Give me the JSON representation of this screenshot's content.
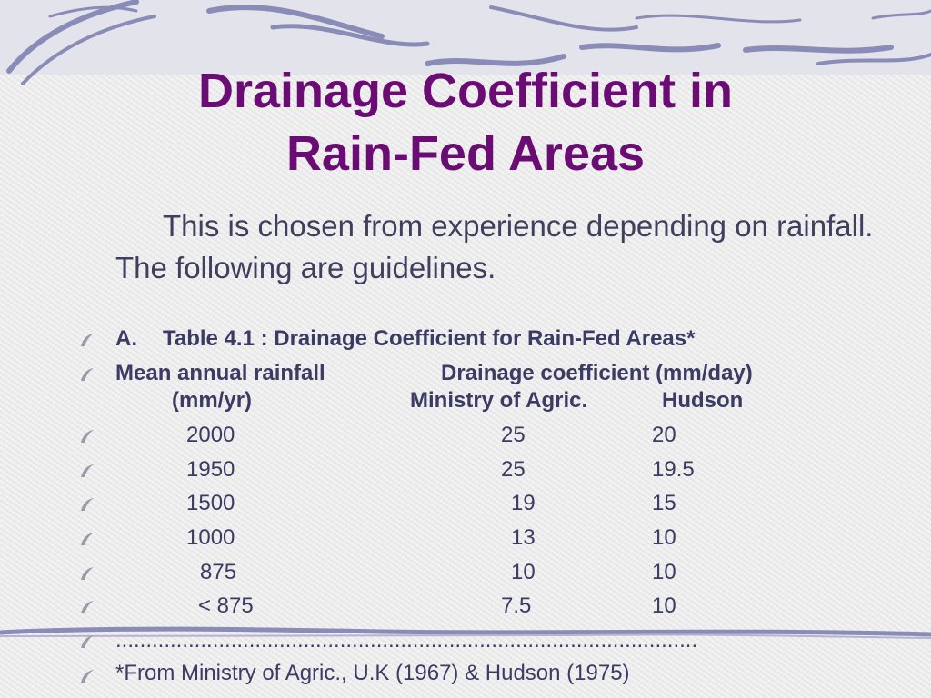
{
  "slide": {
    "title_line1": "Drainage Coefficient in",
    "title_line2": "Rain-Fed Areas",
    "intro": "This is chosen from experience depending on rainfall.  The following are guidelines.",
    "table_caption_marker": "A.",
    "table_caption": "Table 4.1 :  Drainage Coefficient for Rain-Fed Areas*",
    "header": {
      "col1": "Mean annual rainfall",
      "col2": "Drainage coefficient (mm/day)",
      "col1_unit": "(mm/yr)",
      "sub_ministry": "Ministry of Agric.",
      "sub_hudson": "Hudson"
    },
    "rows": [
      {
        "rainfall": "2000",
        "ministry": "25",
        "hudson": "20"
      },
      {
        "rainfall": "1950",
        "ministry": "25",
        "hudson": "19.5"
      },
      {
        "rainfall": "1500",
        "ministry": "19",
        "hudson": "15"
      },
      {
        "rainfall": "1000",
        "ministry": "13",
        "hudson": "10"
      },
      {
        "rainfall": "875",
        "ministry": "10",
        "hudson": "10"
      },
      {
        "rainfall": "< 875",
        "ministry": "7.5",
        "hudson": "10"
      }
    ],
    "dotted_rule": "................................................................................................",
    "footnote": "*From Ministry of Agric., U.K (1967) & Hudson (1975)",
    "colors": {
      "title": "#6a0c74",
      "body_text": "#3b3b63",
      "band": "#e3e3ec",
      "swirl": "#8a8cb8"
    },
    "icons": {
      "bullet": "swoosh-bullet-icon",
      "top_decoration": "swirl-decoration-icon",
      "bottom_decoration": "swirl-divider-icon"
    }
  }
}
